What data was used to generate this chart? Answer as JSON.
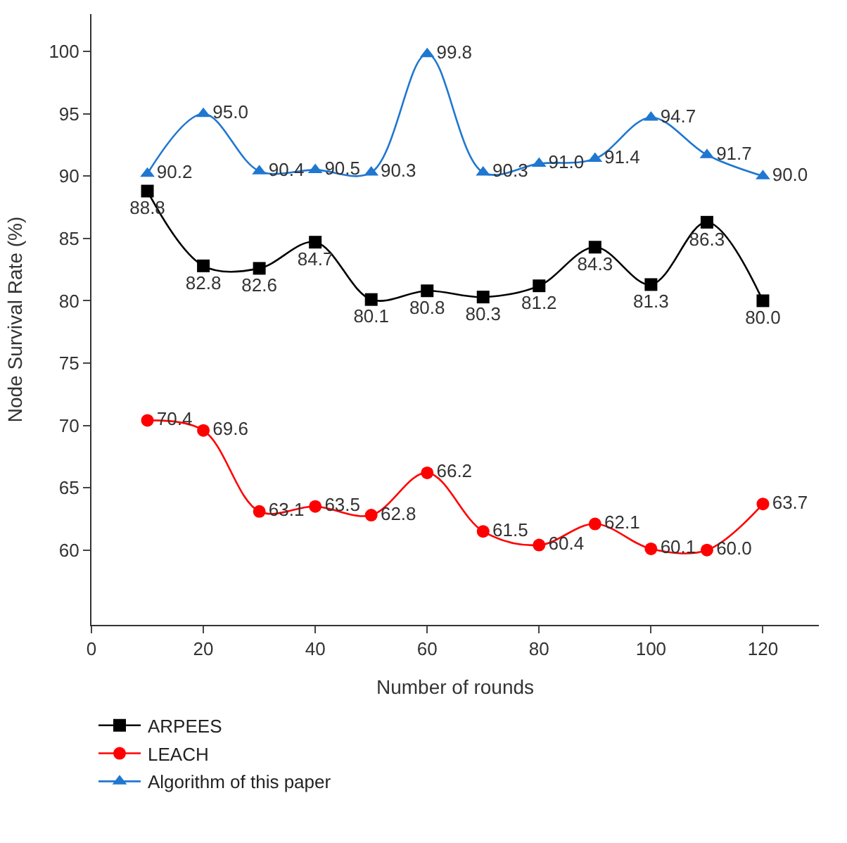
{
  "chart_data": {
    "type": "line",
    "xlabel": "Number of rounds",
    "ylabel": "Node Survival Rate (%)",
    "x": [
      10,
      20,
      30,
      40,
      50,
      60,
      70,
      80,
      90,
      100,
      110,
      120
    ],
    "series": [
      {
        "name": "ARPEES",
        "color": "#000000",
        "marker": "square",
        "values": [
          88.8,
          82.8,
          82.6,
          84.7,
          80.1,
          80.8,
          80.3,
          81.2,
          84.3,
          81.3,
          86.3,
          80.0
        ],
        "value_labels": [
          "88.8",
          "82.8",
          "82.6",
          "84.7",
          "80.1",
          "80.8",
          "80.3",
          "81.2",
          "84.3",
          "81.3",
          "86.3",
          "80.0"
        ]
      },
      {
        "name": "LEACH",
        "color": "#ff0000",
        "marker": "circle",
        "values": [
          70.4,
          69.6,
          63.1,
          63.5,
          62.8,
          66.2,
          61.5,
          60.4,
          62.1,
          60.1,
          60.0,
          63.7
        ],
        "value_labels": [
          "70.4",
          "69.6",
          "63.1",
          "63.5",
          "62.8",
          "66.2",
          "61.5",
          "60.4",
          "62.1",
          "60.1",
          "60.0",
          "63.7"
        ]
      },
      {
        "name": "Algorithm of this paper",
        "color": "#1f77d0",
        "marker": "triangle",
        "values": [
          90.2,
          95.0,
          90.4,
          90.5,
          90.3,
          99.8,
          90.3,
          91.0,
          91.4,
          94.7,
          91.7,
          90.0
        ],
        "value_labels": [
          "90.2",
          "95.0",
          "90.4",
          "90.5",
          "90.3",
          "99.8",
          "90.3",
          "91.0",
          "91.4",
          "94.7",
          "91.7",
          "90.0"
        ]
      }
    ],
    "xlim": [
      0,
      130
    ],
    "xticks": [
      0,
      20,
      40,
      60,
      80,
      100,
      120
    ],
    "ylim": [
      54,
      103
    ],
    "yticks": [
      60,
      65,
      70,
      75,
      80,
      85,
      90,
      95,
      100
    ],
    "legend": "bottom left",
    "line_style": "solid"
  }
}
